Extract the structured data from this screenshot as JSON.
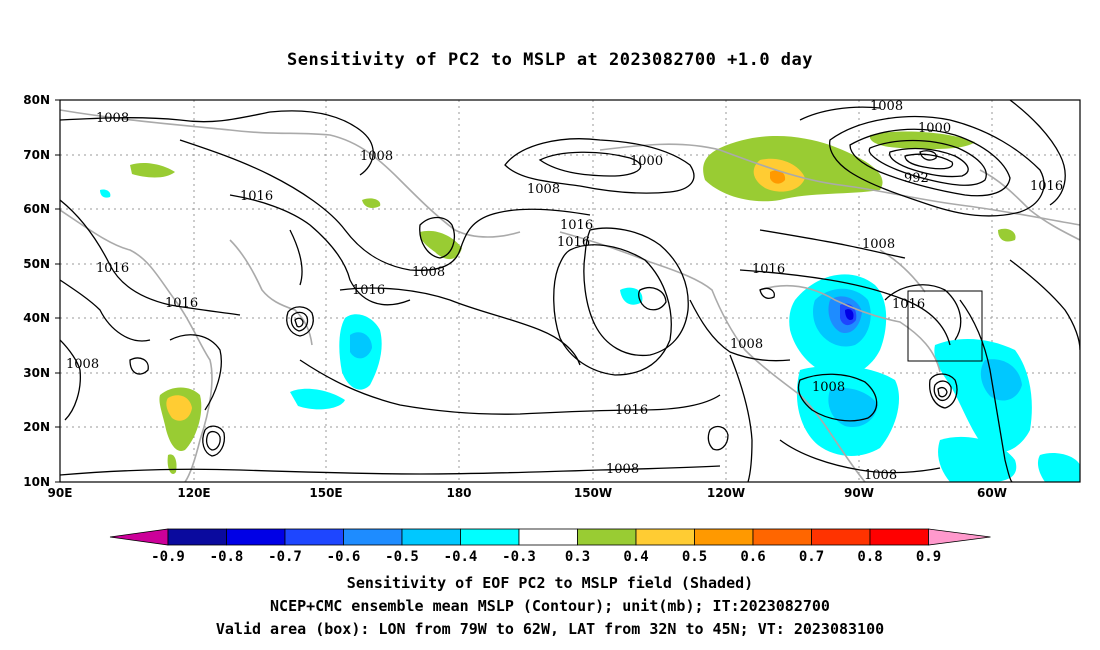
{
  "title": "Sensitivity of PC2 to MSLP at 2023082700 +1.0 day",
  "lat_labels": [
    "80N",
    "70N",
    "60N",
    "50N",
    "40N",
    "30N",
    "20N",
    "10N"
  ],
  "lon_labels": [
    "90E",
    "120E",
    "150E",
    "180",
    "150W",
    "120W",
    "90W",
    "60W"
  ],
  "contour_labels": [
    "1008",
    "1008",
    "1016",
    "1016",
    "1016",
    "1008",
    "1008",
    "1008",
    "1000",
    "1008",
    "1016",
    "1016",
    "1016",
    "1008",
    "1016",
    "1000",
    "992",
    "1008",
    "1016",
    "1008",
    "1016",
    "1008",
    "1008"
  ],
  "colorbar": {
    "labels": [
      "-0.9",
      "-0.8",
      "-0.7",
      "-0.6",
      "-0.5",
      "-0.4",
      "-0.3",
      "0.3",
      "0.4",
      "0.5",
      "0.6",
      "0.7",
      "0.8",
      "0.9"
    ],
    "colors": [
      "#0a0a9e",
      "#0000e6",
      "#1e46ff",
      "#1e8cff",
      "#00c8ff",
      "#00ffff",
      "#ffffff",
      "#99cc33",
      "#ffcc33",
      "#ff9900",
      "#ff6600",
      "#ff3300",
      "#ff0000"
    ],
    "low_end_color": "#cc0099",
    "high_end_color": "#ff99cc"
  },
  "footer": {
    "line1": "Sensitivity of EOF PC2 to MSLP field (Shaded)",
    "line2": "NCEP+CMC ensemble mean MSLP (Contour); unit(mb); IT:2023082700",
    "line3": "Valid area (box): LON from 79W to 62W, LAT from 32N to 45N; VT: 2023083100"
  }
}
